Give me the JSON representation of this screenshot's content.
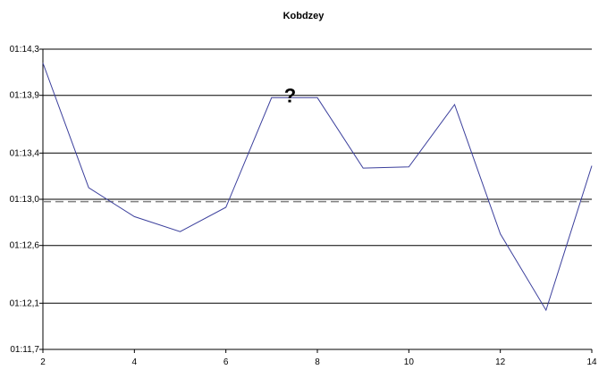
{
  "chart_data": {
    "type": "line",
    "title": "Kobdzey",
    "xlabel": "",
    "ylabel": "",
    "xlim": [
      2,
      14
    ],
    "ylim": [
      74.7,
      77.3
    ],
    "x_ticks": [
      2,
      4,
      6,
      8,
      10,
      12,
      14
    ],
    "y_ticks": [
      {
        "value": 74.7,
        "label": "01:11,7"
      },
      {
        "value": 75.1,
        "label": "01:12,1"
      },
      {
        "value": 75.6,
        "label": "01:12,6"
      },
      {
        "value": 76.0,
        "label": "01:13,0"
      },
      {
        "value": 76.4,
        "label": "01:13,4"
      },
      {
        "value": 76.9,
        "label": "01:13,9"
      },
      {
        "value": 77.3,
        "label": "01:14,3"
      }
    ],
    "grid": true,
    "series": [
      {
        "color": "#3b3f9c",
        "x": [
          2,
          3,
          4,
          5,
          6,
          7,
          8,
          9,
          10,
          11,
          12,
          13,
          14
        ],
        "y": [
          77.18,
          76.1,
          75.85,
          75.72,
          75.93,
          76.88,
          76.88,
          76.27,
          76.28,
          76.82,
          75.7,
          75.04,
          76.29
        ]
      }
    ],
    "reference_line": {
      "y": 75.98,
      "style": "dashed",
      "color": "#808080"
    },
    "annotations": [
      {
        "text": "?",
        "x": 7.5,
        "y": 76.88
      }
    ]
  }
}
